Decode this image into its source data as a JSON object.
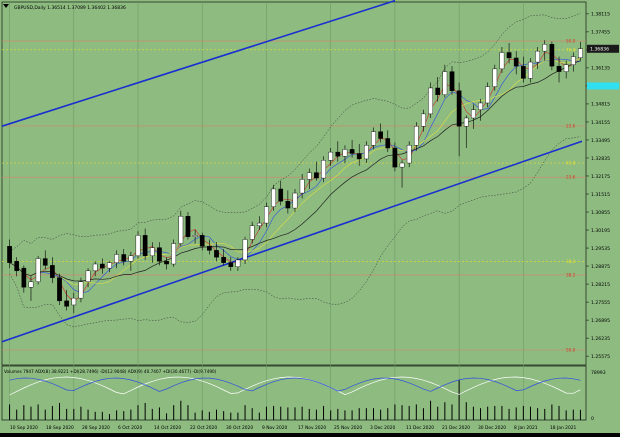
{
  "header": {
    "symbol_line": "GBPUSD,Daily  1.36514  1.37089  1.36402  1.36836"
  },
  "indicator_header": "Volumes 7947  ADX(8) 38.9221  +DI(28.7496)  -DI(12.9048)  ADX(9) 40.7407  +DI(30.4677)  -DI(9.7490)",
  "colors": {
    "background": "#8dbb80",
    "grid": "#6f9a66",
    "channel": "#1a2fd0",
    "fib": "#d9826a",
    "yellow": "#e8e030",
    "cyan_marker": "#30e0f0",
    "candle_bull": "#ffffff",
    "candle_bear": "#000000"
  },
  "price_axis": {
    "ticks": [
      "1.38115",
      "1.37455",
      "1.36795",
      "1.36135",
      "1.35475",
      "1.34815",
      "1.34155",
      "1.33495",
      "1.32835",
      "1.32175",
      "1.31515",
      "1.30855",
      "1.30195",
      "1.29535",
      "1.28875",
      "1.28215",
      "1.27555",
      "1.26895",
      "1.26235",
      "1.25575"
    ],
    "current_price": "1.36836",
    "marker_price": "1.35475"
  },
  "fib_labels": [
    {
      "label": "50.0",
      "price": 1.3712
    },
    {
      "label": "76.4",
      "price": 1.368
    },
    {
      "label": "23.6",
      "price": 1.3401
    },
    {
      "label": "61.8",
      "price": 1.3265
    },
    {
      "label": "23.6",
      "price": 1.3213
    },
    {
      "label": "38.2",
      "price": 1.2905
    },
    {
      "label": "38.2",
      "price": 1.2855
    },
    {
      "label": "50.0",
      "price": 1.258
    }
  ],
  "indicator_axis": {
    "ticks": [
      "78993",
      "0"
    ]
  },
  "date_axis": [
    "10 Sep 2020",
    "18 Sep 2020",
    "28 Sep 2020",
    "6 Oct 2020",
    "14 Oct 2020",
    "22 Oct 2020",
    "30 Oct 2020",
    "9 Nov 2020",
    "17 Nov 2020",
    "25 Nov 2020",
    "3 Dec 2020",
    "11 Dec 2020",
    "21 Dec 2020",
    "30 Dec 2020",
    "8 Jan 2021",
    "18 Jan 2021"
  ],
  "chart_data": {
    "type": "candlestick",
    "ylim": [
      1.2525,
      1.3855
    ],
    "candles": [
      [
        1.296,
        1.2985,
        1.288,
        1.29
      ],
      [
        1.2905,
        1.292,
        1.285,
        1.287
      ],
      [
        1.288,
        1.289,
        1.279,
        1.281
      ],
      [
        1.281,
        1.285,
        1.276,
        1.283
      ],
      [
        1.283,
        1.2925,
        1.282,
        1.2915
      ],
      [
        1.2915,
        1.2945,
        1.2875,
        1.289
      ],
      [
        1.289,
        1.292,
        1.2825,
        1.2845
      ],
      [
        1.2845,
        1.286,
        1.2745,
        1.276
      ],
      [
        1.276,
        1.28,
        1.2725,
        1.274
      ],
      [
        1.2745,
        1.279,
        1.2715,
        1.277
      ],
      [
        1.277,
        1.2845,
        1.2755,
        1.283
      ],
      [
        1.283,
        1.288,
        1.281,
        1.287
      ],
      [
        1.287,
        1.2905,
        1.285,
        1.2895
      ],
      [
        1.2895,
        1.2915,
        1.286,
        1.288
      ],
      [
        1.288,
        1.2905,
        1.2865,
        1.29
      ],
      [
        1.29,
        1.2945,
        1.288,
        1.293
      ],
      [
        1.293,
        1.295,
        1.289,
        1.2905
      ],
      [
        1.2905,
        1.294,
        1.287,
        1.2925
      ],
      [
        1.2925,
        1.3015,
        1.2915,
        1.3
      ],
      [
        1.3,
        1.3025,
        1.291,
        1.2925
      ],
      [
        1.2925,
        1.2975,
        1.29,
        1.2955
      ],
      [
        1.2955,
        1.2975,
        1.289,
        1.2905
      ],
      [
        1.2905,
        1.292,
        1.2875,
        1.2895
      ],
      [
        1.2895,
        1.2985,
        1.2885,
        1.297
      ],
      [
        1.297,
        1.309,
        1.296,
        1.307
      ],
      [
        1.307,
        1.3085,
        1.2985,
        1.2995
      ],
      [
        1.2995,
        1.302,
        1.297,
        1.3
      ],
      [
        1.3,
        1.301,
        1.2945,
        1.296
      ],
      [
        1.296,
        1.2985,
        1.293,
        1.2945
      ],
      [
        1.2945,
        1.2975,
        1.2905,
        1.292
      ],
      [
        1.292,
        1.295,
        1.289,
        1.29
      ],
      [
        1.29,
        1.292,
        1.287,
        1.2885
      ],
      [
        1.2885,
        1.292,
        1.287,
        1.291
      ],
      [
        1.291,
        1.2995,
        1.2895,
        1.2985
      ],
      [
        1.2985,
        1.305,
        1.297,
        1.3035
      ],
      [
        1.3035,
        1.307,
        1.302,
        1.3045
      ],
      [
        1.3045,
        1.312,
        1.303,
        1.3105
      ],
      [
        1.3105,
        1.3185,
        1.309,
        1.317
      ],
      [
        1.317,
        1.32,
        1.311,
        1.3125
      ],
      [
        1.3125,
        1.3165,
        1.308,
        1.31
      ],
      [
        1.31,
        1.317,
        1.3085,
        1.3155
      ],
      [
        1.3155,
        1.3225,
        1.3135,
        1.3205
      ],
      [
        1.3205,
        1.3245,
        1.317,
        1.323
      ],
      [
        1.323,
        1.327,
        1.32,
        1.321
      ],
      [
        1.321,
        1.329,
        1.3195,
        1.3275
      ],
      [
        1.3275,
        1.332,
        1.3255,
        1.3305
      ],
      [
        1.3305,
        1.3345,
        1.327,
        1.329
      ],
      [
        1.329,
        1.333,
        1.3265,
        1.3315
      ],
      [
        1.3315,
        1.335,
        1.3285,
        1.33
      ],
      [
        1.33,
        1.3335,
        1.3255,
        1.328
      ],
      [
        1.328,
        1.3345,
        1.3265,
        1.333
      ],
      [
        1.333,
        1.3395,
        1.3315,
        1.338
      ],
      [
        1.338,
        1.341,
        1.334,
        1.3355
      ],
      [
        1.3355,
        1.3385,
        1.3305,
        1.332
      ],
      [
        1.332,
        1.334,
        1.3235,
        1.325
      ],
      [
        1.325,
        1.3275,
        1.3175,
        1.3265
      ],
      [
        1.3265,
        1.3345,
        1.325,
        1.333
      ],
      [
        1.333,
        1.3415,
        1.331,
        1.34
      ],
      [
        1.34,
        1.346,
        1.338,
        1.3445
      ],
      [
        1.3445,
        1.356,
        1.343,
        1.354
      ],
      [
        1.354,
        1.358,
        1.349,
        1.3515
      ],
      [
        1.3515,
        1.3625,
        1.3505,
        1.36
      ],
      [
        1.36,
        1.362,
        1.3515,
        1.353
      ],
      [
        1.353,
        1.356,
        1.329,
        1.34
      ],
      [
        1.34,
        1.344,
        1.332,
        1.343
      ],
      [
        1.343,
        1.348,
        1.339,
        1.346
      ],
      [
        1.346,
        1.35,
        1.342,
        1.3485
      ],
      [
        1.3485,
        1.356,
        1.347,
        1.3545
      ],
      [
        1.3545,
        1.3625,
        1.353,
        1.361
      ],
      [
        1.361,
        1.369,
        1.3595,
        1.367
      ],
      [
        1.367,
        1.3705,
        1.363,
        1.365
      ],
      [
        1.365,
        1.3675,
        1.359,
        1.362
      ],
      [
        1.362,
        1.3655,
        1.356,
        1.3575
      ],
      [
        1.3575,
        1.365,
        1.356,
        1.3635
      ],
      [
        1.3635,
        1.369,
        1.361,
        1.3675
      ],
      [
        1.3675,
        1.3715,
        1.364,
        1.37
      ],
      [
        1.37,
        1.371,
        1.3605,
        1.362
      ],
      [
        1.362,
        1.3655,
        1.356,
        1.36
      ],
      [
        1.36,
        1.364,
        1.3575,
        1.3625
      ],
      [
        1.3625,
        1.367,
        1.36,
        1.3655
      ],
      [
        1.3651,
        1.3709,
        1.364,
        1.3684
      ]
    ],
    "fractal_markers_high": [
      1.3885,
      1.382
    ]
  }
}
